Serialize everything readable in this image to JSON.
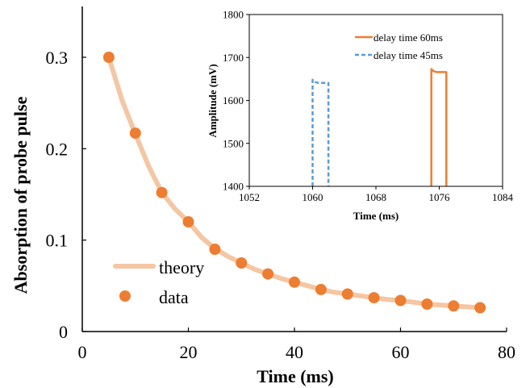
{
  "chart_data": [
    {
      "type": "scatter",
      "xlabel": "Time (ms)",
      "ylabel": "Absorption of probe pulse",
      "xlim": [
        0,
        80
      ],
      "ylim": [
        0,
        0.33
      ],
      "xticks": [
        "0",
        "20",
        "40",
        "60",
        "80"
      ],
      "yticks": [
        "0",
        "0.1",
        "0.2",
        "0.3"
      ],
      "legend": {
        "placement": "lower-left",
        "entries": [
          "theory",
          "data"
        ]
      },
      "series": [
        {
          "name": "theory",
          "kind": "line",
          "color": "#f4c6a4",
          "x": [
            5,
            7.5,
            10,
            12.5,
            15,
            17.5,
            20,
            22.5,
            25,
            27.5,
            30,
            32.5,
            35,
            37.5,
            40,
            42.5,
            45,
            47.5,
            50,
            52.5,
            55,
            57.5,
            60,
            62.5,
            65,
            67.5,
            70,
            72.5,
            75
          ],
          "y": [
            0.3,
            0.253,
            0.216,
            0.181,
            0.152,
            0.134,
            0.12,
            0.103,
            0.091,
            0.082,
            0.075,
            0.068,
            0.063,
            0.058,
            0.054,
            0.05,
            0.046,
            0.043,
            0.041,
            0.039,
            0.037,
            0.035,
            0.034,
            0.032,
            0.03,
            0.029,
            0.028,
            0.027,
            0.026
          ]
        },
        {
          "name": "data",
          "kind": "points",
          "color": "#ed7d31",
          "x": [
            5,
            10,
            15,
            20,
            25,
            30,
            35,
            40,
            45,
            50,
            55,
            60,
            65,
            70,
            75
          ],
          "y": [
            0.3,
            0.217,
            0.152,
            0.12,
            0.09,
            0.075,
            0.063,
            0.054,
            0.046,
            0.041,
            0.037,
            0.034,
            0.03,
            0.028,
            0.026
          ]
        }
      ]
    },
    {
      "type": "line",
      "xlabel": "Time (ms)",
      "ylabel": "Amplitude (mV)",
      "xlim": [
        1052,
        1084
      ],
      "ylim": [
        1400,
        1800
      ],
      "xticks": [
        "1052",
        "1060",
        "1068",
        "1076",
        "1084"
      ],
      "yticks": [
        "1400",
        "1500",
        "1600",
        "1700",
        "1800"
      ],
      "legend": {
        "placement": "top-right",
        "entries": [
          "delay time 60ms",
          "delay time 45ms"
        ]
      },
      "series": [
        {
          "name": "delay time 60ms",
          "color": "#ed7d31",
          "dash": "solid",
          "x": [
            1075,
            1075,
            1075.3,
            1075.7,
            1076.1,
            1076.9,
            1076.9
          ],
          "y": [
            1400,
            1673,
            1668,
            1666,
            1666,
            1666,
            1400
          ]
        },
        {
          "name": "delay time 45ms",
          "color": "#5b9bd5",
          "dash": "dashed",
          "x": [
            1060,
            1060,
            1060.3,
            1060.7,
            1061.2,
            1062,
            1062
          ],
          "y": [
            1400,
            1648,
            1643,
            1641,
            1641,
            1641,
            1400
          ]
        }
      ]
    }
  ]
}
